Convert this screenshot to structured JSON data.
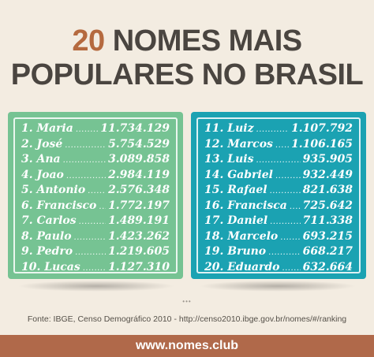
{
  "title": {
    "line1_number": "20",
    "line1_text": " NOMES MAIS",
    "line2": "POPULARES NO BRASIL"
  },
  "colors": {
    "left_panel": "#76c393",
    "right_panel": "#1ba2b2",
    "footer": "#b0694a",
    "accent": "#b56a3f"
  },
  "left_list": [
    {
      "name": "1. Maria",
      "dots": "..................",
      "value": "11.734.129"
    },
    {
      "name": "2. José",
      "dots": ".........................",
      "value": "5.754.529"
    },
    {
      "name": "3. Ana",
      "dots": ".........................",
      "value": "3.089.858"
    },
    {
      "name": "4. Joao",
      "dots": ".........................",
      "value": "2.984.119"
    },
    {
      "name": "5. Antonio",
      "dots": "..................",
      "value": "2.576.348"
    },
    {
      "name": "6. Francisco",
      "dots": "...............",
      "value": "1.772.197"
    },
    {
      "name": "7. Carlos",
      "dots": ".........................",
      "value": "1.489.191"
    },
    {
      "name": "8. Paulo",
      "dots": ".........................",
      "value": "1.423.262"
    },
    {
      "name": "9. Pedro",
      "dots": ".........................",
      "value": "1.219.605"
    },
    {
      "name": "10. Lucas",
      "dots": "........................",
      "value": "1.127.310"
    }
  ],
  "right_list": [
    {
      "name": "11. Luiz",
      "dots": ".........................",
      "value": "1.107.792"
    },
    {
      "name": "12. Marcos",
      "dots": "...................",
      "value": "1.106.165"
    },
    {
      "name": "13. Luis",
      "dots": ".........................",
      "value": "935.905"
    },
    {
      "name": "14. Gabriel",
      "dots": "...................",
      "value": "932.449"
    },
    {
      "name": "15. Rafael",
      "dots": "...................",
      "value": "821.638"
    },
    {
      "name": "16. Francisca",
      "dots": "..............",
      "value": "725.642"
    },
    {
      "name": "17. Daniel",
      "dots": "...................",
      "value": "711.338"
    },
    {
      "name": "18. Marcelo",
      "dots": "................",
      "value": "693.215"
    },
    {
      "name": "19. Bruno",
      "dots": ".....................",
      "value": "668.217"
    },
    {
      "name": "20. Eduardo",
      "dots": "................",
      "value": "632.664"
    }
  ],
  "pager": "•••",
  "source": "Fonte: IBGE, Censo Demográfico 2010 - http://censo2010.ibge.gov.br/nomes/#/ranking",
  "footer": "www.nomes.club"
}
